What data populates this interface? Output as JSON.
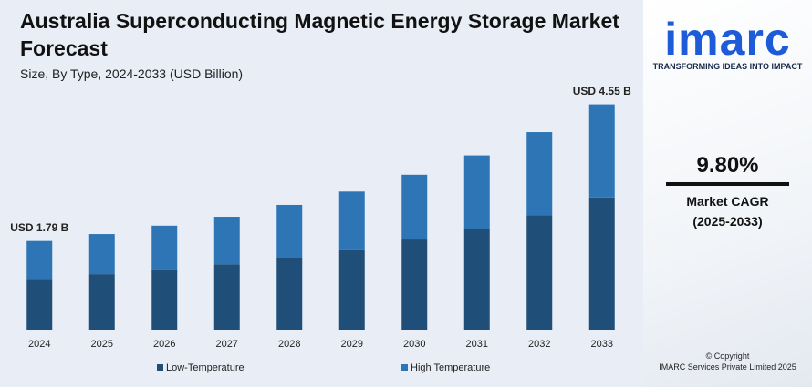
{
  "chart_data": {
    "type": "stacked_bar",
    "title": "Australia Superconducting Magnetic Energy Storage Market Forecast",
    "subtitle": "Size, By Type, 2024-2033 (USD Billion)",
    "categories": [
      "2024",
      "2025",
      "2026",
      "2027",
      "2028",
      "2029",
      "2030",
      "2031",
      "2032",
      "2033"
    ],
    "series": [
      {
        "name": "Low-Temperature",
        "color": "#1f4e79",
        "values": [
          1.02,
          1.12,
          1.22,
          1.32,
          1.46,
          1.62,
          1.82,
          2.04,
          2.31,
          2.67
        ]
      },
      {
        "name": "High Temperature",
        "color": "#2e75b6",
        "values": [
          0.77,
          0.81,
          0.88,
          0.96,
          1.06,
          1.17,
          1.31,
          1.48,
          1.68,
          1.88
        ]
      }
    ],
    "ylim": [
      0,
      4.8
    ],
    "annotations": [
      {
        "x": "2024",
        "value": 1.79,
        "label": "USD 1.79 B"
      },
      {
        "x": "2033",
        "value": 4.55,
        "label": "USD 4.55 B"
      }
    ],
    "legend": "bottom"
  },
  "sidebar": {
    "logo": "imarc",
    "tagline": "TRANSFORMING IDEAS INTO IMPACT",
    "cagr": "9.80%",
    "cagr_label": "Market CAGR",
    "cagr_period": "(2025-2033)",
    "copyright": "© Copyright",
    "company": "IMARC Services Private Limited 2025"
  }
}
